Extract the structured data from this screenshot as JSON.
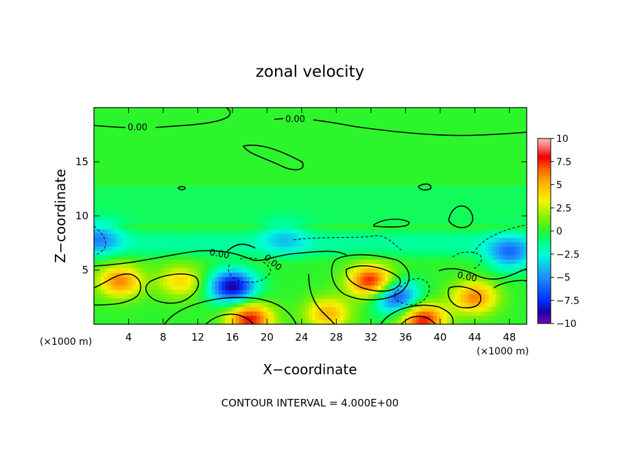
{
  "chart_data": {
    "type": "heatmap",
    "title": "zonal velocity",
    "xlabel": "X−coordinate",
    "ylabel": "Z−coordinate",
    "x_unit_left": "(×1000 m)",
    "x_unit_right": "(×1000 m)",
    "xlim": [
      0,
      50
    ],
    "ylim": [
      0,
      20
    ],
    "xticks": [
      4,
      8,
      12,
      16,
      20,
      24,
      28,
      32,
      36,
      40,
      44,
      48
    ],
    "xtick_labels": [
      "4",
      "8",
      "12",
      "16",
      "20",
      "24",
      "28",
      "32",
      "36",
      "40",
      "44",
      "48"
    ],
    "yticks": [
      5,
      10,
      15
    ],
    "ytick_labels": [
      "5",
      "10",
      "15"
    ],
    "colorbar": {
      "range": [
        -10,
        10
      ],
      "ticks": [
        10,
        7.5,
        5,
        2.5,
        0,
        -2.5,
        -5,
        -7.5,
        -10
      ],
      "tick_labels": [
        "10",
        "7.5",
        "5",
        "2.5",
        "0",
        "−2.5",
        "−5",
        "−7.5",
        "−10"
      ]
    },
    "contour_labels": [
      "0.00",
      "0.00",
      "0.00",
      "0.00",
      "0.00"
    ],
    "footer": "CONTOUR INTERVAL = 4.000E+00",
    "background_value": 0,
    "features": [
      {
        "x": 32,
        "y": 4,
        "value": 8
      },
      {
        "x": 16,
        "y": 3.5,
        "value": -9
      },
      {
        "x": 35,
        "y": 2.5,
        "value": -7
      },
      {
        "x": 48,
        "y": 6.5,
        "value": -5
      },
      {
        "x": 18,
        "y": 0.5,
        "value": 8
      },
      {
        "x": 38,
        "y": 0.5,
        "value": 8
      },
      {
        "x": 3,
        "y": 4,
        "value": 6
      },
      {
        "x": 10,
        "y": 4,
        "value": 4
      },
      {
        "x": 27,
        "y": 1,
        "value": 5
      },
      {
        "x": 44,
        "y": 2.5,
        "value": 6
      },
      {
        "x": 22,
        "y": 8,
        "value": -2.5
      },
      {
        "x": 0.5,
        "y": 8,
        "value": -4
      }
    ]
  }
}
